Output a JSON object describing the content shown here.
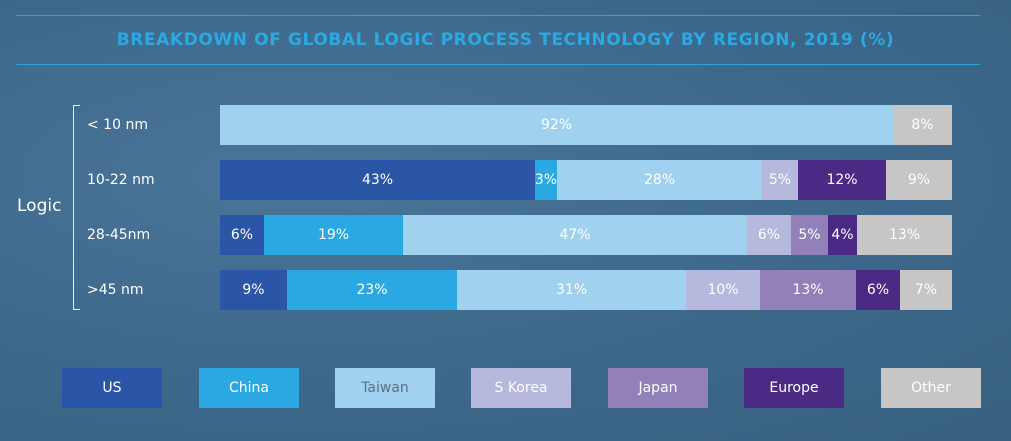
{
  "chart_data": {
    "type": "bar",
    "orientation": "horizontal",
    "stacked": true,
    "title": "BREAKDOWN OF GLOBAL LOGIC PROCESS TECHNOLOGY BY REGION, 2019 (%)",
    "group_label": "Logic",
    "categories": [
      "< 10 nm",
      "10-22 nm",
      "28-45nm",
      ">45 nm"
    ],
    "series": [
      {
        "name": "US",
        "color": "#2b55a6",
        "values": [
          0,
          43,
          6,
          9
        ]
      },
      {
        "name": "China",
        "color": "#29a8e1",
        "values": [
          0,
          3,
          19,
          23
        ]
      },
      {
        "name": "Taiwan",
        "color": "#a0d1ef",
        "values": [
          92,
          28,
          47,
          31
        ]
      },
      {
        "name": "S Korea",
        "color": "#b6b8dd",
        "values": [
          0,
          5,
          6,
          10
        ]
      },
      {
        "name": "Japan",
        "color": "#9280b9",
        "values": [
          0,
          0,
          5,
          13
        ]
      },
      {
        "name": "Europe",
        "color": "#4b2a85",
        "values": [
          0,
          12,
          4,
          6
        ]
      },
      {
        "name": "Other",
        "color": "#c6c6c6",
        "values": [
          8,
          9,
          13,
          7
        ]
      }
    ],
    "xlim": [
      0,
      100
    ],
    "value_suffix": "%",
    "legend_position": "bottom"
  }
}
